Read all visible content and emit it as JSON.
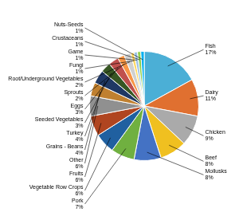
{
  "chart_data": {
    "type": "pie",
    "categories": [
      "Fish",
      "Dairy",
      "Chicken",
      "Beef",
      "Mollusks",
      "Pork",
      "Vegetable Row Crops",
      "Fruits",
      "Other",
      "Grains - Beans",
      "Turkey",
      "Seeded Vegetables",
      "Eggs",
      "Sprouts",
      "Root/Underground Vegetables",
      "Fungi",
      "Game",
      "Crustaceans",
      "Nuts-Seeds"
    ],
    "values": [
      17,
      11,
      9,
      8,
      8,
      7,
      6,
      6,
      6,
      4,
      4,
      3,
      3,
      2,
      2,
      1,
      1,
      1,
      1
    ],
    "value_labels": [
      "17%",
      "11%",
      "9%",
      "8%",
      "8%",
      "7%",
      "6%",
      "6%",
      "6%",
      "4%",
      "4%",
      "3%",
      "3%",
      "2%",
      "2%",
      "1%",
      "1%",
      "1%",
      "1%"
    ],
    "colors": [
      "#4bafd6",
      "#e07030",
      "#aaaaaa",
      "#f0c020",
      "#4472c4",
      "#70b040",
      "#2060a0",
      "#b04520",
      "#909090",
      "#c08030",
      "#1f3864",
      "#375623",
      "#c0504d",
      "#f79646",
      "#d0d0d0",
      "#ffd966",
      "#9dc3e6",
      "#92d050",
      "#00b0f0"
    ],
    "data_labels": true
  }
}
